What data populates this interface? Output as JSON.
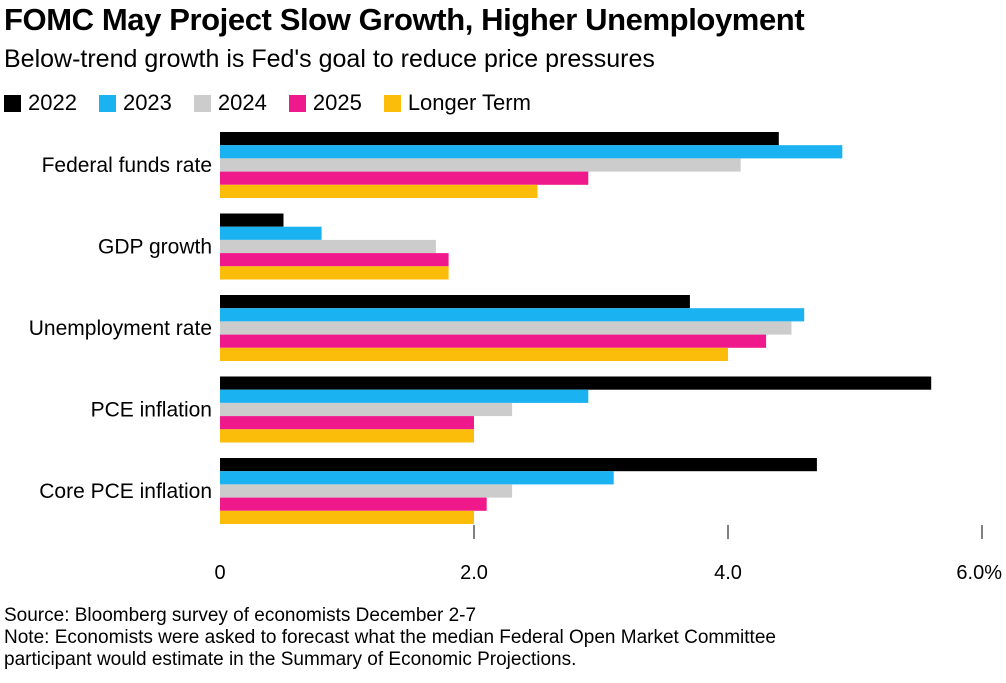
{
  "title": "FOMC May Project Slow Growth, Higher Unemployment",
  "subtitle": "Below-trend growth is Fed's goal to reduce price pressures",
  "colors": {
    "2022": "#000000",
    "2023": "#1ab2f0",
    "2024": "#cccccc",
    "2025": "#f0198c",
    "Longer Term": "#fcbd0a"
  },
  "chart_data": {
    "type": "bar",
    "orientation": "horizontal",
    "categories": [
      "Federal funds rate",
      "GDP growth",
      "Unemployment rate",
      "PCE inflation",
      "Core PCE inflation"
    ],
    "series": [
      {
        "name": "2022",
        "values": [
          4.4,
          0.5,
          3.7,
          5.6,
          4.7
        ]
      },
      {
        "name": "2023",
        "values": [
          4.9,
          0.8,
          4.6,
          2.9,
          3.1
        ]
      },
      {
        "name": "2024",
        "values": [
          4.1,
          1.7,
          4.5,
          2.3,
          2.3
        ]
      },
      {
        "name": "2025",
        "values": [
          2.9,
          1.8,
          4.3,
          2.0,
          2.1
        ]
      },
      {
        "name": "Longer Term",
        "values": [
          2.5,
          1.8,
          4.0,
          2.0,
          2.0
        ]
      }
    ],
    "xlim": [
      0,
      6.0
    ],
    "xticks": [
      "0",
      "2.0",
      "4.0",
      "6.0%"
    ],
    "xtick_values": [
      0,
      2,
      4,
      6
    ],
    "grid": false,
    "legend_position": "top-left"
  },
  "footer": {
    "source": "Source: Bloomberg survey of economists December 2-7",
    "note_line1": "Note: Economists were asked to forecast what the median Federal Open Market Committee",
    "note_line2": "participant would estimate in the Summary of Economic Projections."
  }
}
